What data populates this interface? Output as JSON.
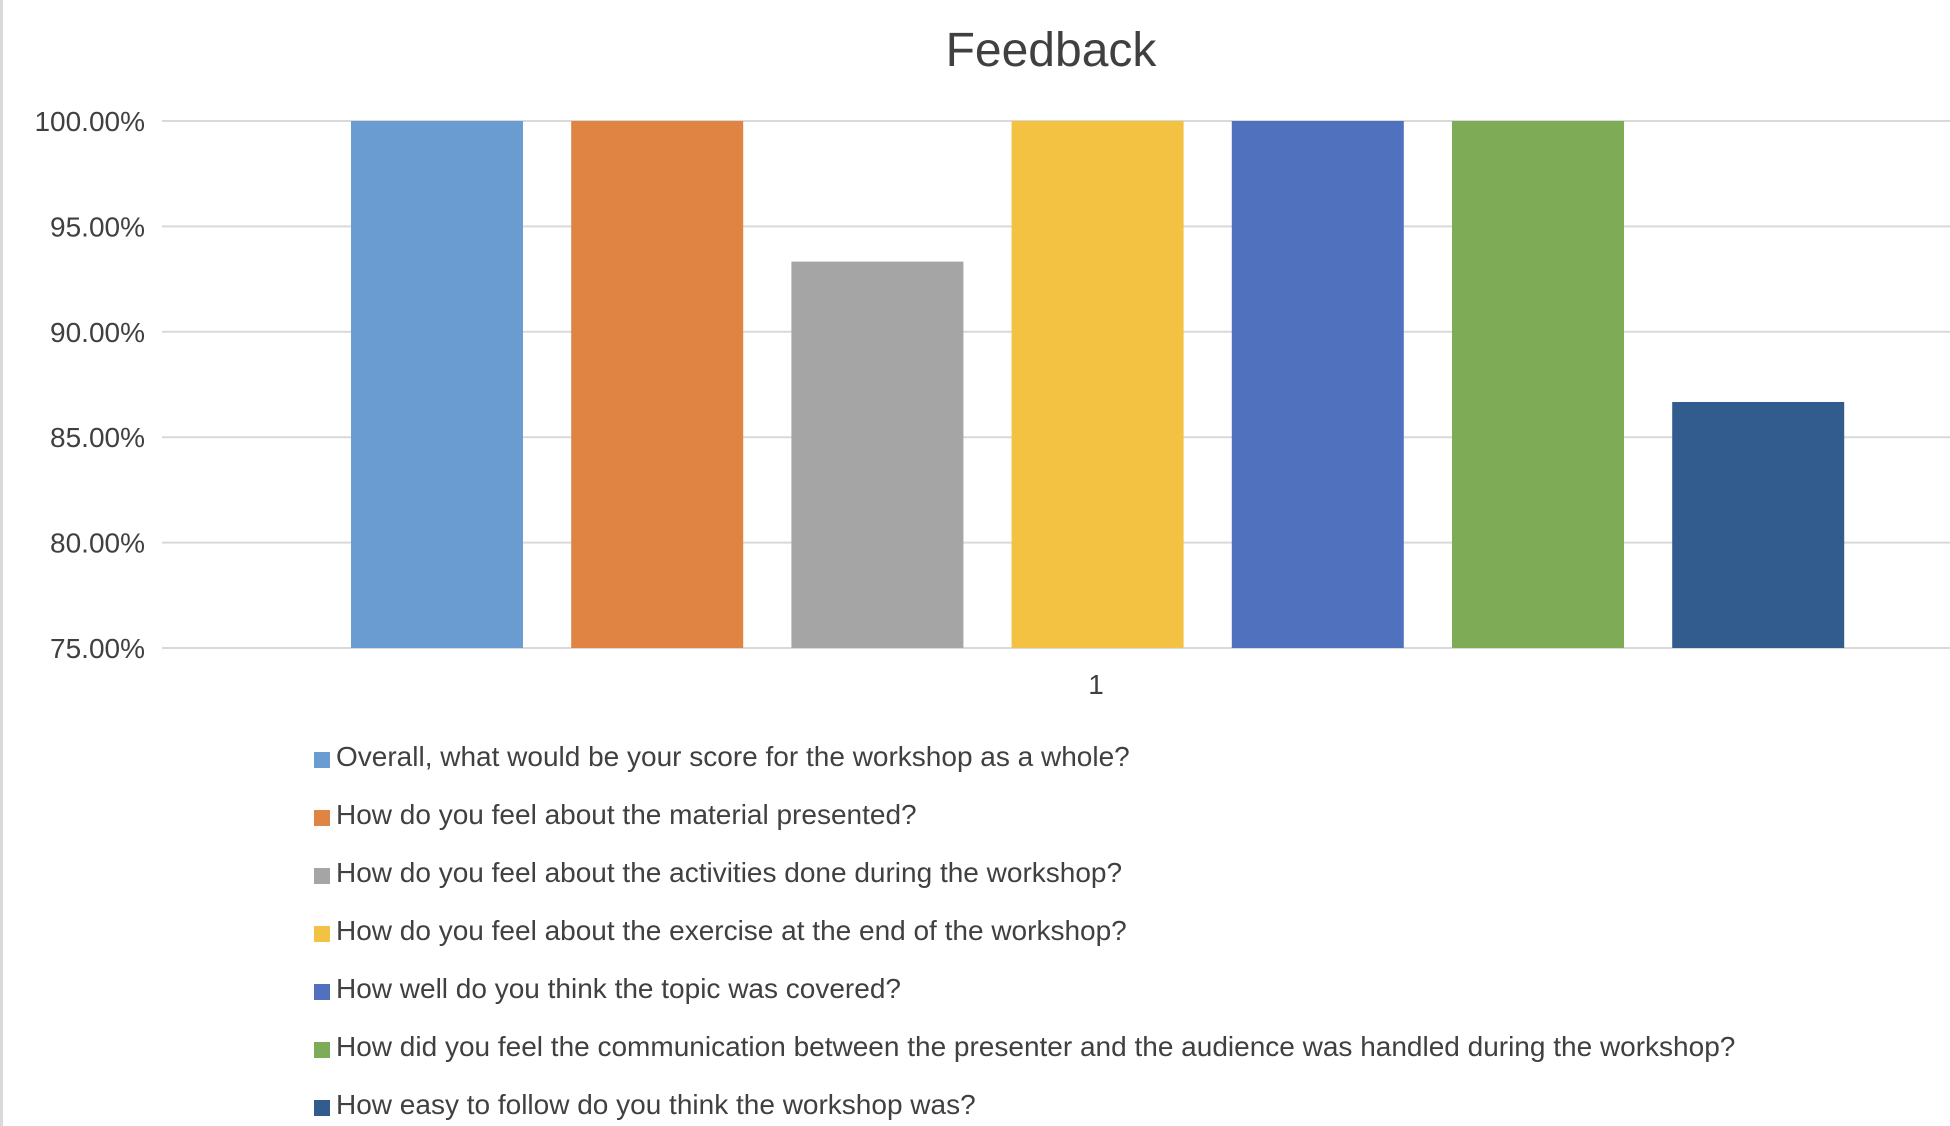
{
  "chart_data": {
    "type": "bar",
    "title": "Feedback",
    "categories": [
      "1"
    ],
    "ylim": [
      0.75,
      1.0
    ],
    "y_ticks": [
      "100.00%",
      "95.00%",
      "90.00%",
      "85.00%",
      "80.00%",
      "75.00%"
    ],
    "y_tick_values": [
      1.0,
      0.95,
      0.9,
      0.85,
      0.8,
      0.75
    ],
    "grid": true,
    "legend_position": "bottom",
    "series": [
      {
        "name": "Overall, what would be your score for the workshop as a whole?",
        "values": [
          1.0
        ],
        "color": "#6a9bd1"
      },
      {
        "name": "How do you feel about the material presented?",
        "values": [
          1.0
        ],
        "color": "#e08443"
      },
      {
        "name": "How do you feel about the activities done during the workshop?",
        "values": [
          0.9333
        ],
        "color": "#a5a5a5"
      },
      {
        "name": "How do you feel about the exercise at the end of the workshop?",
        "values": [
          1.0
        ],
        "color": "#f4c243"
      },
      {
        "name": "How well do you think the topic was covered?",
        "values": [
          1.0
        ],
        "color": "#5072be"
      },
      {
        "name": "How did you feel the communication between the presenter and the audience was handled during the workshop?",
        "values": [
          1.0
        ],
        "color": "#7eab55"
      },
      {
        "name": "How easy to follow do you think the workshop was?",
        "values": [
          0.8667
        ],
        "color": "#335c8e"
      }
    ]
  }
}
